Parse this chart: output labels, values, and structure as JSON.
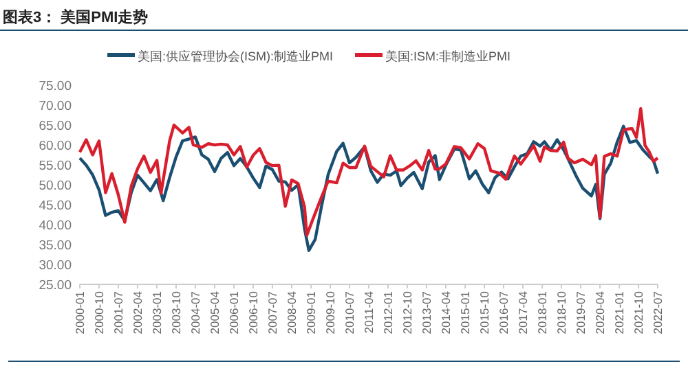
{
  "chart_data": {
    "type": "line",
    "title": "图表3：  美国PMI走势",
    "legend": "top",
    "marker": "none",
    "line_style": "solid",
    "grid": false,
    "xlim": [
      "2000-01",
      "2022-07"
    ],
    "xticks": [
      "2000-01",
      "2000-10",
      "2001-07",
      "2002-04",
      "2003-01",
      "2003-10",
      "2004-07",
      "2005-04",
      "2006-01",
      "2006-10",
      "2007-07",
      "2008-04",
      "2009-01",
      "2009-10",
      "2010-07",
      "2011-04",
      "2012-01",
      "2012-10",
      "2013-07",
      "2014-04",
      "2015-01",
      "2015-10",
      "2016-07",
      "2017-04",
      "2018-01",
      "2018-10",
      "2019-07",
      "2020-04",
      "2021-01",
      "2021-10",
      "2022-07"
    ],
    "ylim": [
      25,
      75
    ],
    "yticks": [
      {
        "value": 25,
        "label": "25.00"
      },
      {
        "value": 30,
        "label": "30.00"
      },
      {
        "value": 35,
        "label": "35.00"
      },
      {
        "value": 40,
        "label": "40.00"
      },
      {
        "value": 45,
        "label": "45.00"
      },
      {
        "value": 50,
        "label": "50.00"
      },
      {
        "value": 55,
        "label": "55.00"
      },
      {
        "value": 60,
        "label": "60.00"
      },
      {
        "value": 65,
        "label": "65.00"
      },
      {
        "value": 70,
        "label": "70.00"
      },
      {
        "value": 75,
        "label": "75.00"
      }
    ],
    "series": [
      {
        "name": "美国:供应管理协会(ISM):制造业PMI",
        "color": "#1b4f72",
        "x": [
          "2000-01",
          "2000-04",
          "2000-07",
          "2000-10",
          "2001-01",
          "2001-04",
          "2001-07",
          "2001-10",
          "2002-01",
          "2002-04",
          "2002-07",
          "2002-10",
          "2003-01",
          "2003-04",
          "2003-07",
          "2003-10",
          "2004-01",
          "2004-04",
          "2004-07",
          "2004-10",
          "2005-01",
          "2005-04",
          "2005-07",
          "2005-10",
          "2006-01",
          "2006-04",
          "2006-07",
          "2006-10",
          "2007-01",
          "2007-04",
          "2007-07",
          "2007-10",
          "2008-01",
          "2008-04",
          "2008-07",
          "2008-10",
          "2008-12",
          "2009-03",
          "2009-06",
          "2009-09",
          "2010-01",
          "2010-04",
          "2010-07",
          "2010-10",
          "2011-02",
          "2011-05",
          "2011-08",
          "2011-11",
          "2012-02",
          "2012-05",
          "2012-07",
          "2012-10",
          "2013-01",
          "2013-05",
          "2013-08",
          "2013-11",
          "2014-01",
          "2014-04",
          "2014-08",
          "2014-11",
          "2015-03",
          "2015-06",
          "2015-09",
          "2015-12",
          "2016-03",
          "2016-06",
          "2016-09",
          "2016-12",
          "2017-03",
          "2017-06",
          "2017-09",
          "2017-12",
          "2018-02",
          "2018-05",
          "2018-08",
          "2018-11",
          "2019-01",
          "2019-05",
          "2019-08",
          "2019-12",
          "2020-02",
          "2020-04",
          "2020-06",
          "2020-09",
          "2020-12",
          "2021-03",
          "2021-06",
          "2021-09",
          "2021-12",
          "2022-03",
          "2022-05",
          "2022-07"
        ],
        "values": [
          56.7,
          54.9,
          52.5,
          48.7,
          42.3,
          43.1,
          43.5,
          41,
          48,
          52.4,
          50.5,
          48.5,
          51.3,
          46,
          51.8,
          57,
          61,
          61.5,
          62,
          57.5,
          56.4,
          53.3,
          56.6,
          58.1,
          54.8,
          56.6,
          54.5,
          51.7,
          49.3,
          54.7,
          53.8,
          50.9,
          50.7,
          48.6,
          50,
          38.9,
          33.5,
          36.3,
          44.8,
          52.6,
          58.4,
          60.4,
          55.5,
          56.9,
          59.5,
          53.5,
          50.6,
          52.7,
          52.4,
          53.5,
          49.8,
          51.7,
          53.1,
          49,
          55.7,
          57.3,
          51.3,
          54.9,
          59,
          58.7,
          51.5,
          53.5,
          50.2,
          48,
          51.8,
          53.2,
          51.5,
          54.5,
          57.2,
          57.8,
          60.8,
          59.7,
          60.8,
          58.7,
          61.3,
          58.8,
          56.6,
          52.1,
          49.1,
          47.2,
          50.1,
          41.5,
          52.6,
          55.4,
          60.7,
          64.7,
          60.6,
          61.1,
          58.8,
          57.1,
          56.1,
          52.8
        ]
      },
      {
        "name": "美国:ISM:非制造业PMI",
        "color": "#d91f2e",
        "x": [
          "2000-01",
          "2000-04",
          "2000-07",
          "2000-10",
          "2001-01",
          "2001-04",
          "2001-07",
          "2001-10",
          "2002-01",
          "2002-04",
          "2002-07",
          "2002-10",
          "2003-01",
          "2003-03",
          "2003-07",
          "2003-09",
          "2004-01",
          "2004-04",
          "2004-06",
          "2004-10",
          "2005-01",
          "2005-04",
          "2005-07",
          "2005-10",
          "2006-01",
          "2006-04",
          "2006-07",
          "2006-10",
          "2007-01",
          "2007-04",
          "2007-07",
          "2007-10",
          "2008-01",
          "2008-04",
          "2008-07",
          "2008-10",
          "2008-11",
          "2009-02",
          "2009-06",
          "2009-09",
          "2010-01",
          "2010-04",
          "2010-07",
          "2010-10",
          "2011-02",
          "2011-05",
          "2011-08",
          "2011-11",
          "2012-02",
          "2012-05",
          "2012-08",
          "2012-11",
          "2013-02",
          "2013-05",
          "2013-08",
          "2013-11",
          "2014-01",
          "2014-04",
          "2014-08",
          "2014-11",
          "2015-03",
          "2015-07",
          "2015-10",
          "2016-01",
          "2016-05",
          "2016-08",
          "2016-12",
          "2017-03",
          "2017-06",
          "2017-09",
          "2017-12",
          "2018-02",
          "2018-05",
          "2018-08",
          "2018-11",
          "2019-01",
          "2019-04",
          "2019-08",
          "2019-12",
          "2020-02",
          "2020-04",
          "2020-06",
          "2020-09",
          "2020-12",
          "2021-03",
          "2021-05",
          "2021-07",
          "2021-09",
          "2021-11",
          "2022-01",
          "2022-03",
          "2022-05",
          "2022-07"
        ],
        "values": [
          58.2,
          61.3,
          57.5,
          61,
          48,
          52.8,
          47.5,
          40.6,
          49.6,
          54,
          57.2,
          53.1,
          56.1,
          47.9,
          61,
          65,
          63,
          64.4,
          60,
          59.4,
          60.3,
          60,
          60.2,
          60,
          57.5,
          59.6,
          54.4,
          57.4,
          59.1,
          55.6,
          54.8,
          54.9,
          44.6,
          51.2,
          50.3,
          44.4,
          37.3,
          41.6,
          47,
          50.9,
          50.5,
          55.4,
          54.3,
          54.3,
          59.7,
          54.6,
          53.3,
          52,
          57.3,
          53.7,
          53.7,
          54.7,
          56,
          53.7,
          58.6,
          53.9,
          54,
          55.2,
          59.6,
          59.3,
          56.5,
          60.3,
          59.1,
          53.5,
          52.9,
          51.4,
          57.2,
          55.2,
          57.4,
          59.8,
          55.9,
          59.5,
          58.6,
          58.5,
          60.7,
          56.7,
          55.5,
          56.4,
          55,
          57.3,
          41.8,
          57.1,
          57.8,
          57.2,
          63.7,
          64,
          64.1,
          61.9,
          69.1,
          59.9,
          58.3,
          55.9,
          56.7
        ]
      }
    ]
  }
}
